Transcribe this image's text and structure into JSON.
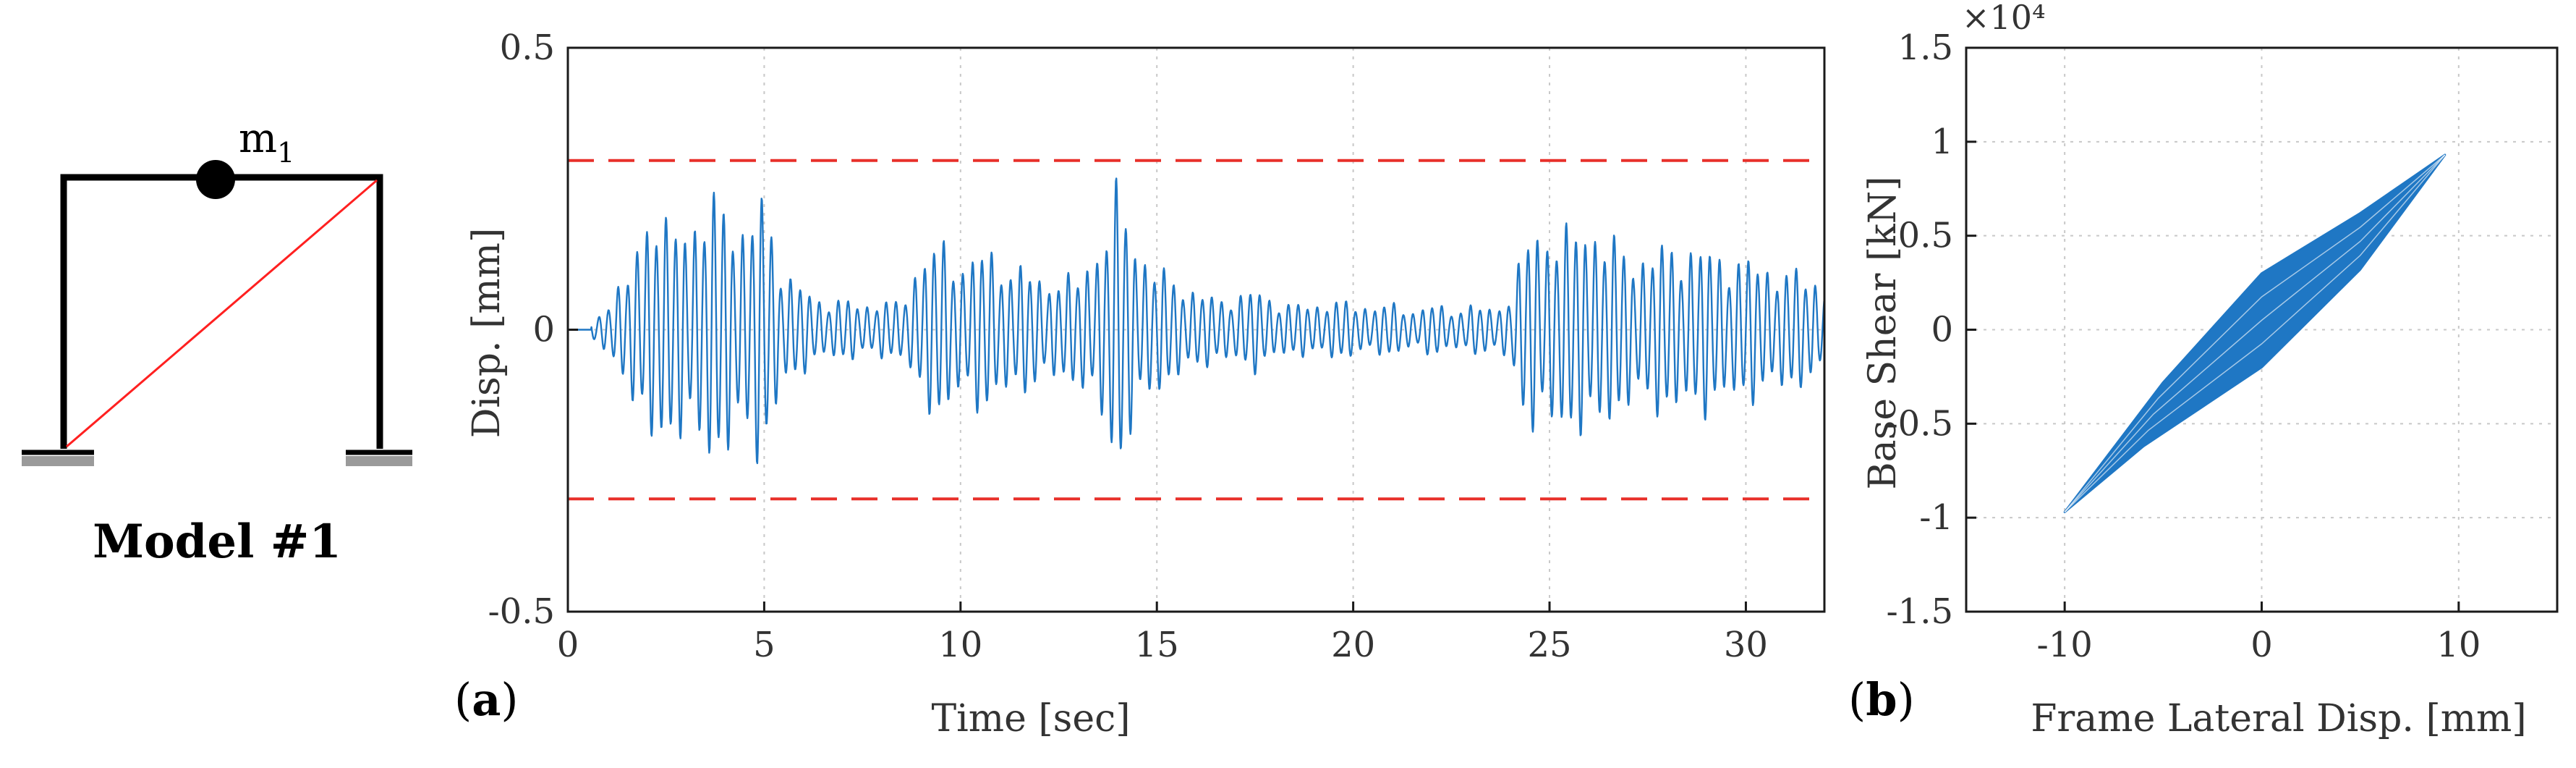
{
  "model": {
    "mass_label": "m",
    "mass_subscript": "1",
    "title": "Model #1"
  },
  "colors": {
    "frame": "#000000",
    "brace": "#ff2020",
    "series": "#1f77c4",
    "limit": "#e8302a",
    "grid": "#c8c8c8",
    "axis": "#1a1a1a"
  },
  "chart_data": [
    {
      "panel_label": "a",
      "type": "line",
      "title": "",
      "xlabel": "Time [sec]",
      "ylabel": "Disp. [mm]",
      "xlim": [
        0,
        32
      ],
      "ylim": [
        -0.5,
        0.5
      ],
      "xticks": [
        0,
        5,
        10,
        15,
        20,
        25,
        30
      ],
      "yticks": [
        -0.5,
        0,
        0.5
      ],
      "grid": true,
      "legend": "none",
      "limit_lines": [
        0.3,
        -0.3
      ],
      "series_peaks": [
        [
          0.0,
          0.0
        ],
        [
          0.5,
          0.02
        ],
        [
          1.0,
          0.05
        ],
        [
          1.5,
          0.1
        ],
        [
          2.0,
          0.26
        ],
        [
          2.5,
          0.2
        ],
        [
          3.0,
          0.24
        ],
        [
          3.5,
          0.23
        ],
        [
          4.0,
          0.28
        ],
        [
          4.5,
          0.2
        ],
        [
          5.0,
          -0.27
        ],
        [
          5.5,
          0.12
        ],
        [
          6.0,
          0.08
        ],
        [
          6.5,
          0.06
        ],
        [
          7.0,
          0.06
        ],
        [
          7.5,
          0.05
        ],
        [
          8.0,
          0.06
        ],
        [
          8.5,
          0.05
        ],
        [
          9.0,
          0.16
        ],
        [
          9.5,
          0.17
        ],
        [
          10.0,
          0.14
        ],
        [
          10.5,
          0.16
        ],
        [
          11.0,
          0.14
        ],
        [
          11.5,
          0.13
        ],
        [
          12.0,
          0.1
        ],
        [
          12.5,
          0.11
        ],
        [
          13.0,
          0.1
        ],
        [
          13.5,
          0.18
        ],
        [
          14.0,
          0.28
        ],
        [
          14.5,
          0.18
        ],
        [
          15.0,
          0.12
        ],
        [
          15.5,
          0.1
        ],
        [
          16.0,
          0.08
        ],
        [
          16.5,
          0.06
        ],
        [
          17.0,
          0.07
        ],
        [
          17.5,
          0.08
        ],
        [
          18.0,
          0.06
        ],
        [
          18.5,
          0.05
        ],
        [
          19.0,
          0.05
        ],
        [
          19.5,
          0.06
        ],
        [
          20.0,
          0.05
        ],
        [
          20.5,
          0.05
        ],
        [
          21.0,
          0.05
        ],
        [
          21.5,
          0.04
        ],
        [
          22.0,
          0.05
        ],
        [
          22.5,
          0.04
        ],
        [
          23.0,
          0.05
        ],
        [
          23.5,
          0.04
        ],
        [
          24.0,
          0.07
        ],
        [
          24.5,
          0.2
        ],
        [
          25.0,
          0.21
        ],
        [
          25.5,
          0.19
        ],
        [
          26.0,
          0.23
        ],
        [
          26.5,
          0.18
        ],
        [
          27.0,
          0.16
        ],
        [
          27.5,
          0.15
        ],
        [
          28.0,
          0.17
        ],
        [
          28.5,
          0.17
        ],
        [
          29.0,
          0.16
        ],
        [
          29.5,
          0.15
        ],
        [
          30.0,
          0.14
        ],
        [
          30.5,
          0.13
        ],
        [
          31.0,
          0.12
        ],
        [
          31.5,
          0.11
        ],
        [
          32.0,
          0.1
        ]
      ]
    },
    {
      "panel_label": "b",
      "type": "line",
      "title": "",
      "xlabel": "Frame Lateral Disp. [mm]",
      "ylabel": "Base Shear [kN]",
      "y_multiplier": "×10⁴",
      "xlim": [
        -15,
        15
      ],
      "ylim": [
        -1.5,
        1.5
      ],
      "xticks": [
        -10,
        0,
        10
      ],
      "xtick_labels": [
        "-10",
        "0",
        "10"
      ],
      "yticks": [
        -1.5,
        -1,
        -0.5,
        0,
        0.5,
        1,
        1.5
      ],
      "ytick_labels": [
        "-1.5",
        "-1",
        "-0.5",
        "0",
        "0.5",
        "1",
        "1.5"
      ],
      "grid": true,
      "legend": "none",
      "hysteresis": {
        "start": [
          -10,
          -0.97
        ],
        "end": [
          9.3,
          0.93
        ],
        "upper_branch": [
          [
            -10,
            -0.97
          ],
          [
            -5,
            -0.28
          ],
          [
            0,
            0.3
          ],
          [
            5,
            0.62
          ],
          [
            9.3,
            0.93
          ]
        ],
        "lower_branch": [
          [
            -10,
            -0.97
          ],
          [
            -6,
            -0.62
          ],
          [
            0,
            -0.2
          ],
          [
            5,
            0.32
          ],
          [
            9.3,
            0.93
          ]
        ]
      }
    }
  ],
  "ticks_a_x": [
    "0",
    "5",
    "10",
    "15",
    "20",
    "25",
    "30"
  ],
  "ticks_a_y": [
    "-0.5",
    "0",
    "0.5"
  ],
  "panel_a_label": "(a)",
  "panel_b_label": "(b)"
}
